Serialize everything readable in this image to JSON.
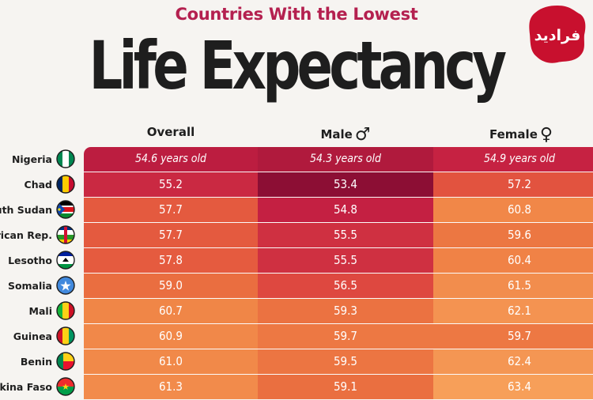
{
  "header": {
    "subtitle": "Countries With the Lowest",
    "title": "Life Expectancy",
    "logo_text": "فرادید"
  },
  "columns": {
    "overall": "Overall",
    "male": "Male",
    "male_symbol": "♂",
    "female": "Female",
    "female_symbol": "♀"
  },
  "chart_data": {
    "type": "table",
    "columns": [
      "Overall",
      "Male",
      "Female"
    ],
    "value_suffix_first_row": "years old",
    "rows": [
      {
        "country": "Nigeria",
        "overall": "54.6",
        "male": "54.3",
        "female": "54.9",
        "flag": "nigeria-flag"
      },
      {
        "country": "Chad",
        "overall": "55.2",
        "male": "53.4",
        "female": "57.2",
        "flag": "chad-flag"
      },
      {
        "country": "outh Sudan",
        "overall": "57.7",
        "male": "54.8",
        "female": "60.8",
        "flag": "south-sudan-flag"
      },
      {
        "country": "African Rep.",
        "overall": "57.7",
        "male": "55.5",
        "female": "59.6",
        "flag": "car-flag"
      },
      {
        "country": "Lesotho",
        "overall": "57.8",
        "male": "55.5",
        "female": "60.4",
        "flag": "lesotho-flag"
      },
      {
        "country": "Somalia",
        "overall": "59.0",
        "male": "56.5",
        "female": "61.5",
        "flag": "somalia-flag"
      },
      {
        "country": "Mali",
        "overall": "60.7",
        "male": "59.3",
        "female": "62.1",
        "flag": "mali-flag"
      },
      {
        "country": "Guinea",
        "overall": "60.9",
        "male": "59.7",
        "female": "59.7",
        "flag": "guinea-flag"
      },
      {
        "country": "Benin",
        "overall": "61.0",
        "male": "59.5",
        "female": "62.4",
        "flag": "benin-flag"
      },
      {
        "country": "urkina Faso",
        "overall": "61.3",
        "male": "59.1",
        "female": "63.4",
        "flag": "burkina-faso-flag"
      }
    ]
  }
}
